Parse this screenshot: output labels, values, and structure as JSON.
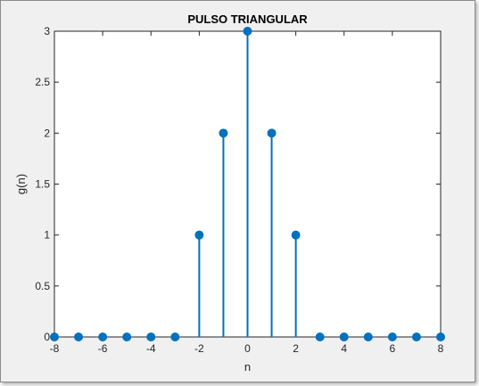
{
  "chart_data": {
    "type": "stem",
    "title": "PULSO TRIANGULAR",
    "xlabel": "n",
    "ylabel": "g(n)",
    "xlim": [
      -8,
      8
    ],
    "ylim": [
      0,
      3
    ],
    "xticks": [
      -8,
      -6,
      -4,
      -2,
      0,
      2,
      4,
      6,
      8
    ],
    "yticks": [
      0,
      0.5,
      1,
      1.5,
      2,
      2.5,
      3
    ],
    "xtick_labels": [
      "-8",
      "-6",
      "-4",
      "-2",
      "0",
      "2",
      "4",
      "6",
      "8"
    ],
    "ytick_labels": [
      "0",
      "0.5",
      "1",
      "1.5",
      "2",
      "2.5",
      "3"
    ],
    "grid": false,
    "series": [
      {
        "x": [
          -8,
          -7,
          -6,
          -5,
          -4,
          -3,
          -2,
          -1,
          0,
          1,
          2,
          3,
          4,
          5,
          6,
          7,
          8
        ],
        "y": [
          0,
          0,
          0,
          0,
          0,
          0,
          1,
          2,
          3,
          2,
          1,
          0,
          0,
          0,
          0,
          0,
          0
        ],
        "color": "#0072bd"
      }
    ]
  },
  "colors": {
    "figure_background": "#f0f0f0",
    "axes_background": "#ffffff",
    "stem": "#0072bd",
    "axis": "#262626"
  }
}
